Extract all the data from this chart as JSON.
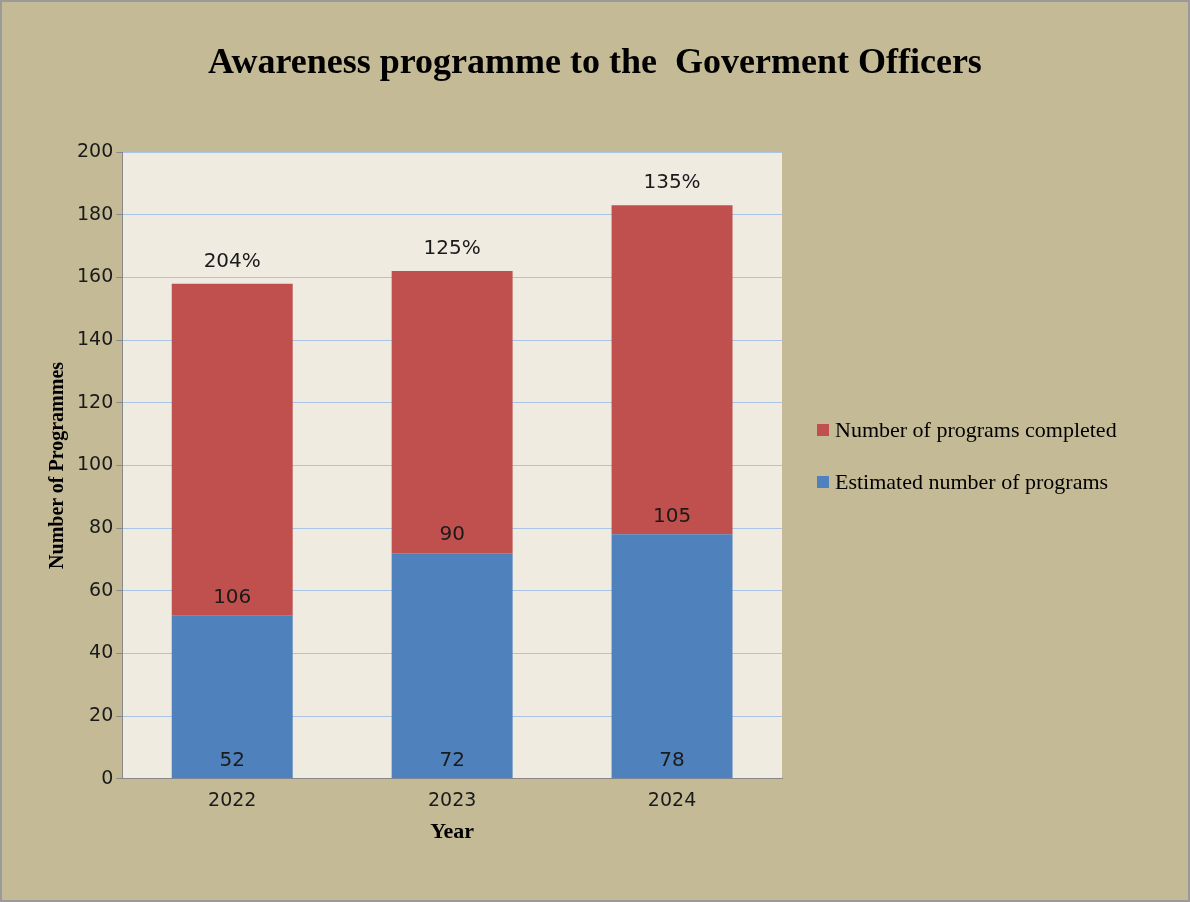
{
  "chart_data": {
    "type": "bar",
    "title": "Awareness programme to the  Goverment Officers",
    "xlabel": "Year",
    "ylabel": "Number of Programmes",
    "categories": [
      "2022",
      "2023",
      "2024"
    ],
    "series": [
      {
        "name": "Estimated number of programs",
        "color": "#4f81bd",
        "values": [
          52,
          72,
          78
        ]
      },
      {
        "name": "Number of programs completed",
        "color": "#c0504d",
        "values": [
          106,
          90,
          105
        ]
      }
    ],
    "stacked": true,
    "ylim": [
      0,
      200
    ],
    "yticks": [
      0,
      20,
      40,
      60,
      80,
      100,
      120,
      140,
      160,
      180,
      200
    ],
    "grid": "y",
    "legend": "right",
    "data_labels": true,
    "annotations": [
      {
        "text": "204%",
        "x": "2022",
        "y": 158
      },
      {
        "text": "125%",
        "x": "2023",
        "y": 162
      },
      {
        "text": "135%",
        "x": "2024",
        "y": 183
      }
    ]
  }
}
